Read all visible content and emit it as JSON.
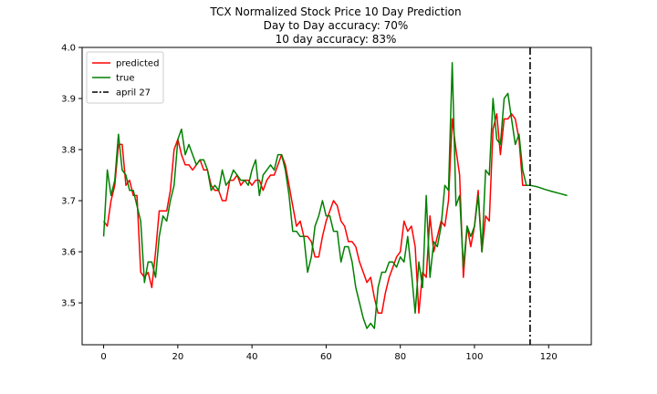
{
  "chart_data": {
    "type": "line",
    "title_lines": [
      "TCX Normalized Stock Price 10 Day Prediction",
      "Day to Day accuracy: 70%",
      "10 day accuracy: 83%"
    ],
    "xlabel": "",
    "ylabel": "",
    "xlim": [
      -5.8,
      131.5
    ],
    "ylim": [
      3.418,
      4.0
    ],
    "x_ticks": [
      0,
      20,
      40,
      60,
      80,
      100,
      120
    ],
    "y_ticks": [
      3.5,
      3.6,
      3.7,
      3.8,
      3.9,
      4.0
    ],
    "y_tick_labels": [
      "3.5",
      "3.6",
      "3.7",
      "3.8",
      "3.9",
      "4.0"
    ],
    "grid": false,
    "legend_position": "top-left",
    "series": [
      {
        "name": "predicted",
        "color": "#ff0000",
        "x": [
          0,
          1,
          2,
          3,
          4,
          5,
          6,
          7,
          8,
          9,
          10,
          11,
          12,
          13,
          14,
          15,
          16,
          17,
          18,
          19,
          20,
          21,
          22,
          23,
          24,
          25,
          26,
          27,
          28,
          29,
          30,
          31,
          32,
          33,
          34,
          35,
          36,
          37,
          38,
          39,
          40,
          41,
          42,
          43,
          44,
          45,
          46,
          47,
          48,
          49,
          50,
          51,
          52,
          53,
          54,
          55,
          56,
          57,
          58,
          59,
          60,
          61,
          62,
          63,
          64,
          65,
          66,
          67,
          68,
          69,
          70,
          71,
          72,
          73,
          74,
          75,
          76,
          77,
          78,
          79,
          80,
          81,
          82,
          83,
          84,
          85,
          86,
          87,
          88,
          89,
          90,
          91,
          92,
          93,
          94,
          95,
          96,
          97,
          98,
          99,
          100,
          101,
          102,
          103,
          104,
          105,
          106,
          107,
          108,
          109,
          110,
          111,
          112,
          113,
          114,
          115
        ],
        "values": [
          3.66,
          3.65,
          3.7,
          3.73,
          3.81,
          3.81,
          3.73,
          3.74,
          3.71,
          3.71,
          3.56,
          3.55,
          3.56,
          3.53,
          3.6,
          3.68,
          3.68,
          3.68,
          3.72,
          3.8,
          3.82,
          3.79,
          3.77,
          3.77,
          3.76,
          3.77,
          3.78,
          3.76,
          3.76,
          3.73,
          3.72,
          3.72,
          3.7,
          3.7,
          3.74,
          3.74,
          3.75,
          3.73,
          3.74,
          3.74,
          3.73,
          3.74,
          3.74,
          3.72,
          3.74,
          3.75,
          3.75,
          3.77,
          3.79,
          3.77,
          3.73,
          3.69,
          3.65,
          3.66,
          3.63,
          3.63,
          3.62,
          3.59,
          3.59,
          3.63,
          3.66,
          3.68,
          3.7,
          3.69,
          3.66,
          3.65,
          3.62,
          3.62,
          3.61,
          3.58,
          3.56,
          3.54,
          3.55,
          3.51,
          3.48,
          3.48,
          3.52,
          3.55,
          3.57,
          3.59,
          3.6,
          3.66,
          3.64,
          3.65,
          3.61,
          3.48,
          3.56,
          3.55,
          3.67,
          3.6,
          3.63,
          3.66,
          3.65,
          3.7,
          3.86,
          3.8,
          3.75,
          3.55,
          3.65,
          3.61,
          3.65,
          3.72,
          3.6,
          3.67,
          3.66,
          3.84,
          3.87,
          3.79,
          3.86,
          3.86,
          3.87,
          3.86,
          3.82,
          3.73,
          3.73,
          3.73
        ]
      },
      {
        "name": "true",
        "color": "#008000",
        "x": [
          0,
          1,
          2,
          3,
          4,
          5,
          6,
          7,
          8,
          9,
          10,
          11,
          12,
          13,
          14,
          15,
          16,
          17,
          18,
          19,
          20,
          21,
          22,
          23,
          24,
          25,
          26,
          27,
          28,
          29,
          30,
          31,
          32,
          33,
          34,
          35,
          36,
          37,
          38,
          39,
          40,
          41,
          42,
          43,
          44,
          45,
          46,
          47,
          48,
          49,
          50,
          51,
          52,
          53,
          54,
          55,
          56,
          57,
          58,
          59,
          60,
          61,
          62,
          63,
          64,
          65,
          66,
          67,
          68,
          69,
          70,
          71,
          72,
          73,
          74,
          75,
          76,
          77,
          78,
          79,
          80,
          81,
          82,
          83,
          84,
          85,
          86,
          87,
          88,
          89,
          90,
          91,
          92,
          93,
          94,
          95,
          96,
          97,
          98,
          99,
          100,
          101,
          102,
          103,
          104,
          105,
          106,
          107,
          108,
          109,
          110,
          111,
          112,
          113,
          114,
          115
        ],
        "values": [
          3.63,
          3.76,
          3.71,
          3.74,
          3.83,
          3.76,
          3.75,
          3.72,
          3.72,
          3.69,
          3.66,
          3.54,
          3.58,
          3.58,
          3.55,
          3.63,
          3.67,
          3.66,
          3.7,
          3.73,
          3.82,
          3.84,
          3.79,
          3.81,
          3.79,
          3.77,
          3.78,
          3.78,
          3.76,
          3.72,
          3.73,
          3.72,
          3.76,
          3.73,
          3.74,
          3.76,
          3.75,
          3.74,
          3.74,
          3.73,
          3.76,
          3.78,
          3.71,
          3.75,
          3.76,
          3.77,
          3.76,
          3.79,
          3.79,
          3.76,
          3.71,
          3.64,
          3.64,
          3.63,
          3.63,
          3.56,
          3.59,
          3.65,
          3.67,
          3.7,
          3.67,
          3.67,
          3.64,
          3.64,
          3.58,
          3.61,
          3.61,
          3.58,
          3.53,
          3.5,
          3.47,
          3.45,
          3.46,
          3.45,
          3.53,
          3.56,
          3.56,
          3.58,
          3.58,
          3.57,
          3.59,
          3.58,
          3.63,
          3.56,
          3.48,
          3.58,
          3.53,
          3.71,
          3.55,
          3.62,
          3.61,
          3.65,
          3.73,
          3.72,
          3.97,
          3.69,
          3.71,
          3.57,
          3.65,
          3.63,
          3.65,
          3.71,
          3.6,
          3.76,
          3.75,
          3.9,
          3.82,
          3.81,
          3.9,
          3.91,
          3.86,
          3.81,
          3.83,
          3.76,
          3.73,
          3.73
        ]
      },
      {
        "name": "",
        "color": "#008000",
        "x": [
          115,
          117,
          119,
          121,
          123,
          125
        ],
        "values": [
          3.73,
          3.727,
          3.722,
          3.718,
          3.714,
          3.71
        ]
      },
      {
        "name": "april 27",
        "color": "#000000",
        "style": "dashdot",
        "vline_x": 115
      }
    ]
  }
}
